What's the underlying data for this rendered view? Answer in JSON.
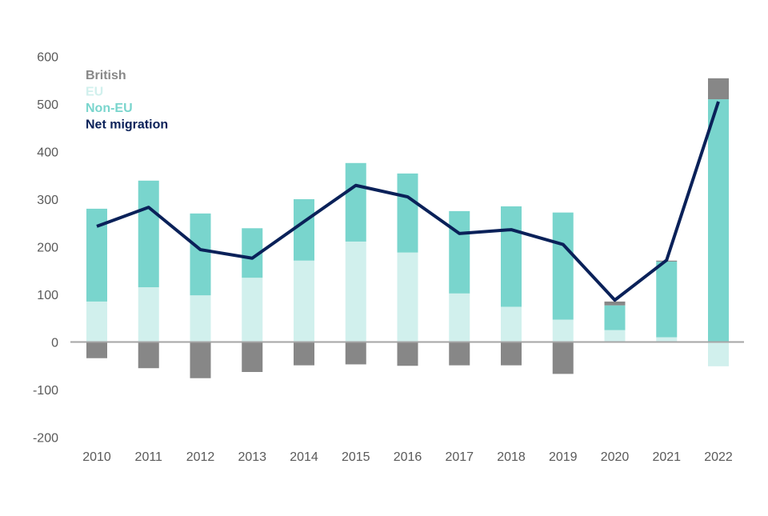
{
  "chart_data": {
    "type": "bar",
    "stacked": true,
    "categories": [
      "2010",
      "2011",
      "2012",
      "2013",
      "2014",
      "2015",
      "2016",
      "2017",
      "2018",
      "2019",
      "2020",
      "2021",
      "2022"
    ],
    "ylim": [
      -200,
      600
    ],
    "yticks": [
      -200,
      -100,
      0,
      100,
      200,
      300,
      400,
      500,
      600
    ],
    "grid": false,
    "legend_position": "top-left",
    "series": [
      {
        "name": "British",
        "kind": "bar",
        "color": "#878787",
        "values": [
          -34,
          -55,
          -76,
          -63,
          -49,
          -47,
          -50,
          -49,
          -49,
          -67,
          8,
          2,
          44
        ]
      },
      {
        "name": "EU",
        "kind": "bar",
        "color": "#d1f0ed",
        "values": [
          85,
          115,
          98,
          135,
          171,
          211,
          188,
          102,
          74,
          47,
          25,
          10,
          -51
        ]
      },
      {
        "name": "Non-EU",
        "kind": "bar",
        "color": "#79d5cd",
        "values": [
          195,
          224,
          172,
          104,
          129,
          165,
          166,
          173,
          211,
          225,
          52,
          159,
          510
        ]
      },
      {
        "name": "Net migration",
        "kind": "line",
        "color": "#0a2159",
        "values": [
          243,
          283,
          194,
          176,
          253,
          329,
          305,
          228,
          236,
          205,
          88,
          172,
          505
        ]
      }
    ]
  }
}
